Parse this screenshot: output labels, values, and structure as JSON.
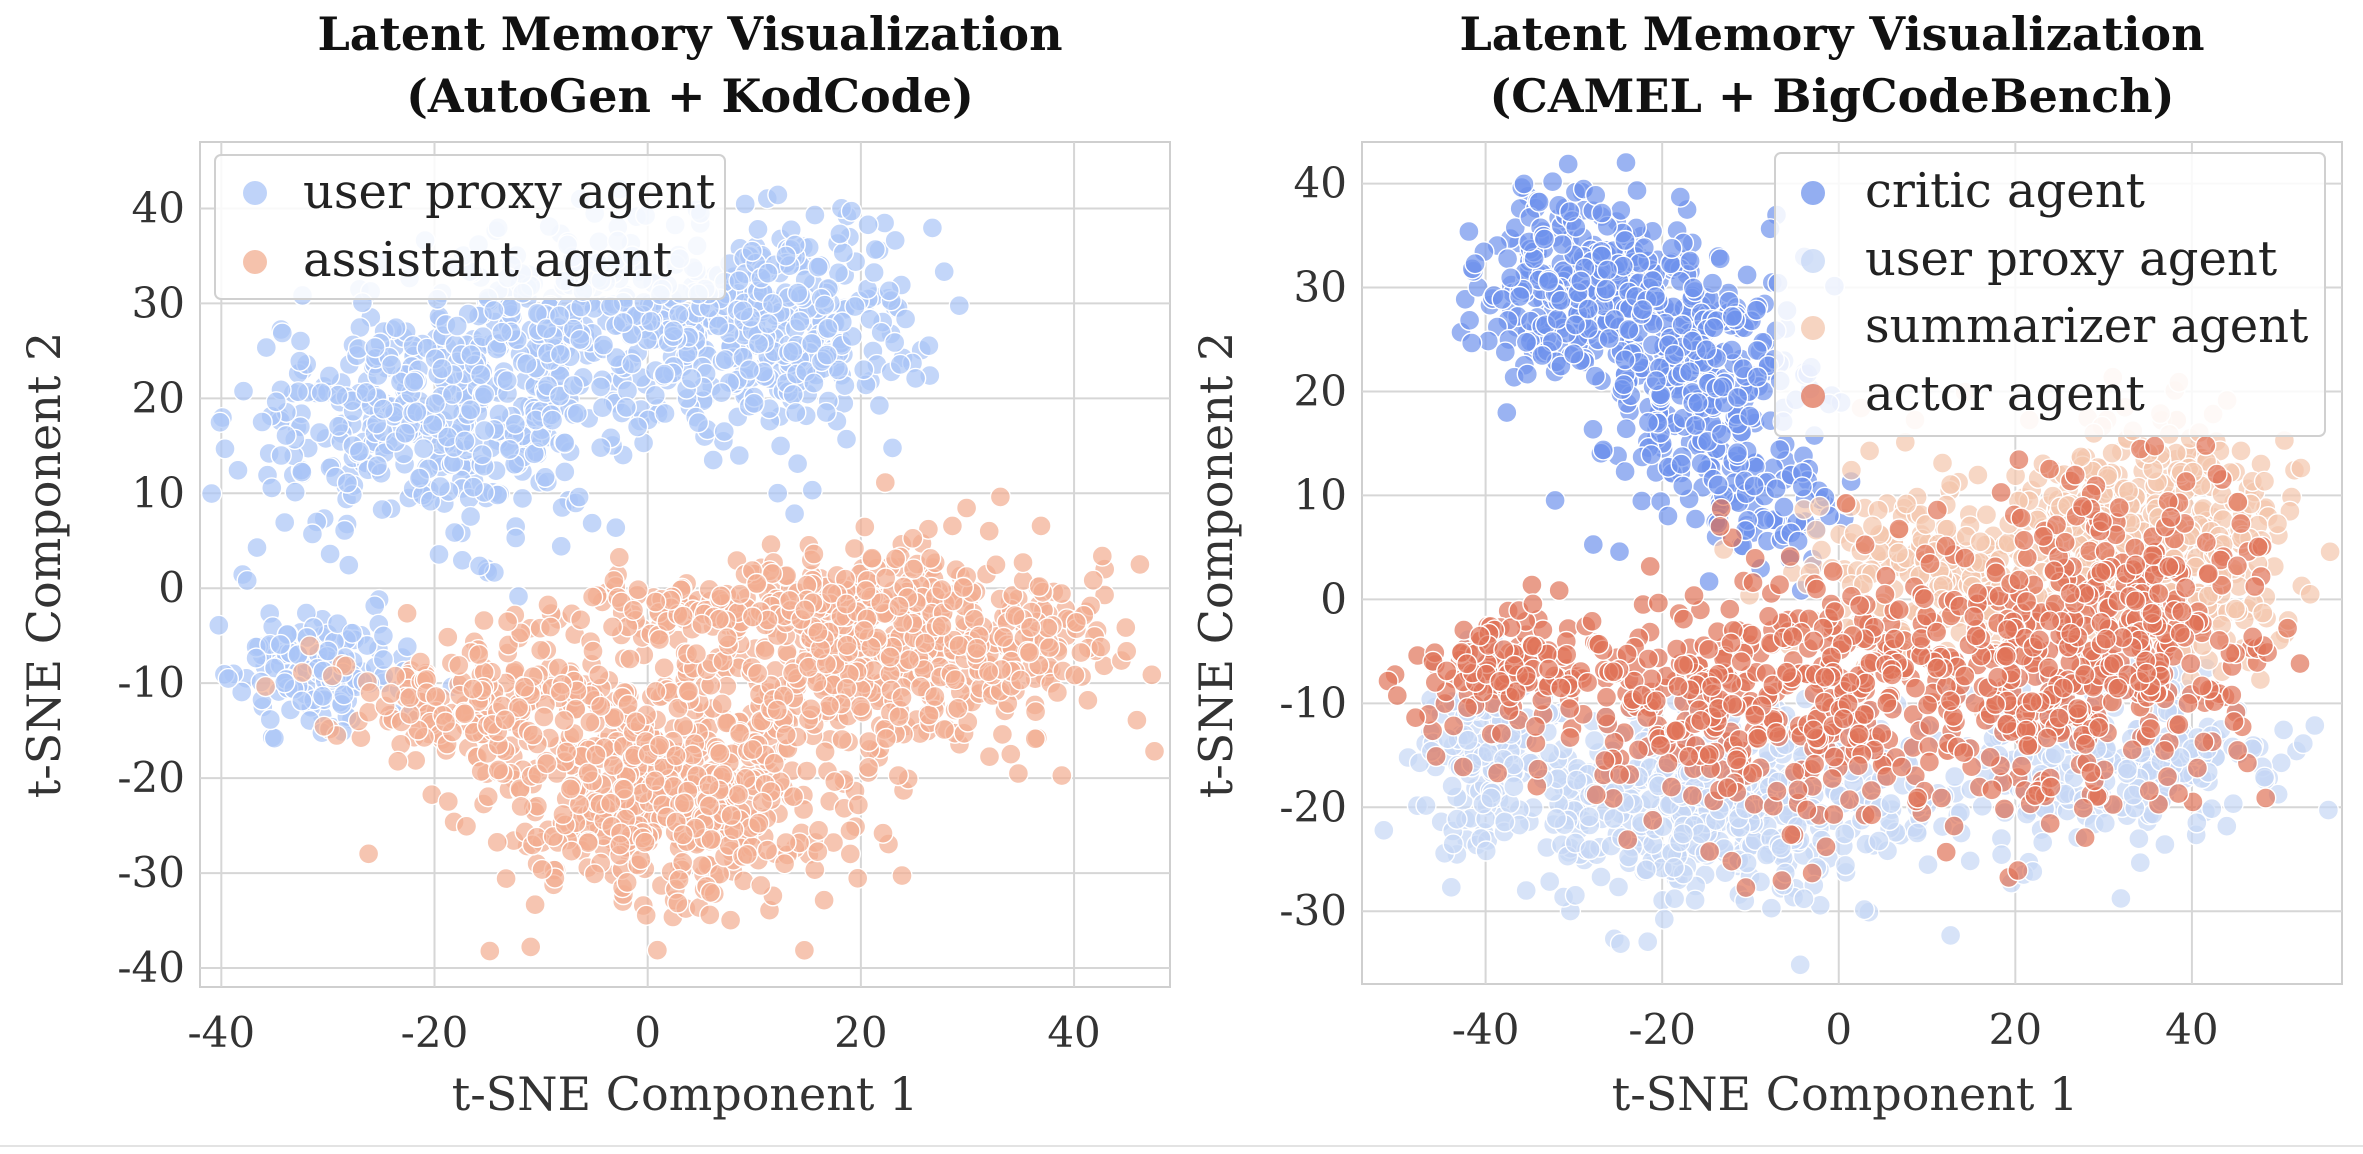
{
  "chart_data": [
    {
      "type": "scatter",
      "title": "Latent Memory Visualization",
      "subtitle": "(AutoGen + KodCode)",
      "xlabel": "t-SNE Component 1",
      "ylabel": "t-SNE Component 2",
      "xlim": [
        -42,
        49
      ],
      "ylim": [
        -42,
        47
      ],
      "xticks": [
        "-40",
        "-20",
        "0",
        "20",
        "40"
      ],
      "yticks": [
        "40",
        "30",
        "20",
        "10",
        "0",
        "-10",
        "-20",
        "-30",
        "-40"
      ],
      "grid": true,
      "legend_position": "upper-left",
      "series": [
        {
          "name": "user proxy agent",
          "color": "#a9c4f7",
          "clusters": [
            {
              "cx": -20,
              "cy": 18,
              "sx": 12,
              "sy": 8,
              "n": 420
            },
            {
              "cx": 12,
              "cy": 28,
              "sx": 9,
              "sy": 8,
              "n": 380
            },
            {
              "cx": -6,
              "cy": 28,
              "sx": 8,
              "sy": 7,
              "n": 200
            },
            {
              "cx": -30,
              "cy": -9,
              "sx": 6,
              "sy": 4,
              "n": 150
            }
          ]
        },
        {
          "name": "assistant agent",
          "color": "#f2ad90",
          "clusters": [
            {
              "cx": 2,
              "cy": -20,
              "sx": 12,
              "sy": 9,
              "n": 620
            },
            {
              "cx": 25,
              "cy": -6,
              "sx": 12,
              "sy": 7,
              "n": 520
            },
            {
              "cx": -18,
              "cy": -12,
              "sx": 9,
              "sy": 4,
              "n": 160
            },
            {
              "cx": 8,
              "cy": -2,
              "sx": 12,
              "sy": 3,
              "n": 150
            }
          ]
        }
      ]
    },
    {
      "type": "scatter",
      "title": "Latent Memory Visualization",
      "subtitle": "(CAMEL + BigCodeBench)",
      "xlabel": "t-SNE Component 1",
      "ylabel": "t-SNE Component 2",
      "xlim": [
        -54,
        57
      ],
      "ylim": [
        -37,
        44
      ],
      "xticks": [
        "-40",
        "-20",
        "0",
        "20",
        "40"
      ],
      "yticks": [
        "40",
        "30",
        "20",
        "10",
        "0",
        "-10",
        "-20",
        "-30"
      ],
      "grid": true,
      "legend_position": "upper-right",
      "series": [
        {
          "name": "critic agent",
          "color": "#6f93ec",
          "clusters": [
            {
              "cx": -28,
              "cy": 30,
              "sx": 8,
              "sy": 6,
              "n": 360
            },
            {
              "cx": -15,
              "cy": 20,
              "sx": 8,
              "sy": 7,
              "n": 280
            },
            {
              "cx": -8,
              "cy": 8,
              "sx": 6,
              "sy": 4,
              "n": 60
            }
          ]
        },
        {
          "name": "user proxy agent",
          "color": "#c6d7f5",
          "clusters": [
            {
              "cx": -15,
              "cy": -20,
              "sx": 18,
              "sy": 6,
              "n": 520
            },
            {
              "cx": 30,
              "cy": -15,
              "sx": 14,
              "sy": 6,
              "n": 260
            },
            {
              "cx": -40,
              "cy": -14,
              "sx": 5,
              "sy": 6,
              "n": 120
            }
          ]
        },
        {
          "name": "summarizer agent",
          "color": "#f3c6ac",
          "clusters": [
            {
              "cx": 35,
              "cy": 5,
              "sx": 10,
              "sy": 8,
              "n": 520
            },
            {
              "cx": 10,
              "cy": 2,
              "sx": 12,
              "sy": 7,
              "n": 220
            }
          ]
        },
        {
          "name": "actor agent",
          "color": "#e07458",
          "clusters": [
            {
              "cx": -5,
              "cy": -10,
              "sx": 20,
              "sy": 8,
              "n": 480
            },
            {
              "cx": 30,
              "cy": -5,
              "sx": 12,
              "sy": 10,
              "n": 420
            },
            {
              "cx": -38,
              "cy": -7,
              "sx": 8,
              "sy": 4,
              "n": 120
            }
          ]
        }
      ]
    }
  ]
}
